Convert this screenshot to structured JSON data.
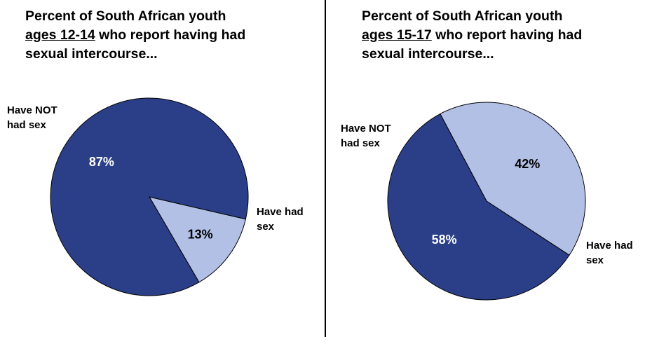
{
  "colors": {
    "dark_slice": "#2b3f89",
    "light_slice": "#b3c0e6",
    "outline": "#000000",
    "label_on_dark": "#ffffff",
    "label_on_light": "#000000"
  },
  "panels": [
    {
      "title_pre": "Percent of South African youth ",
      "title_underlined": "ages 12-14",
      "title_post": " who report having had sexual intercourse...",
      "label_not": "Have NOT had sex",
      "label_had": "Have had sex"
    },
    {
      "title_pre": "Percent of South African youth ",
      "title_underlined": "ages 15-17",
      "title_post": " who report having had sexual intercourse...",
      "label_not": "Have NOT had sex",
      "label_had": "Have had sex"
    }
  ],
  "chart_data": [
    {
      "type": "pie",
      "title": "Percent of South African youth ages 12-14 who report having had sexual intercourse...",
      "categories": [
        "Have NOT had sex",
        "Have had sex"
      ],
      "values": [
        87,
        13
      ],
      "value_labels": [
        "87%",
        "13%"
      ],
      "colors": [
        "#2b3f89",
        "#b3c0e6"
      ]
    },
    {
      "type": "pie",
      "title": "Percent of South African youth ages 15-17 who report having had sexual intercourse...",
      "categories": [
        "Have NOT had sex",
        "Have had sex"
      ],
      "values": [
        58,
        42
      ],
      "value_labels": [
        "58%",
        "42%"
      ],
      "colors": [
        "#2b3f89",
        "#b3c0e6"
      ]
    }
  ]
}
